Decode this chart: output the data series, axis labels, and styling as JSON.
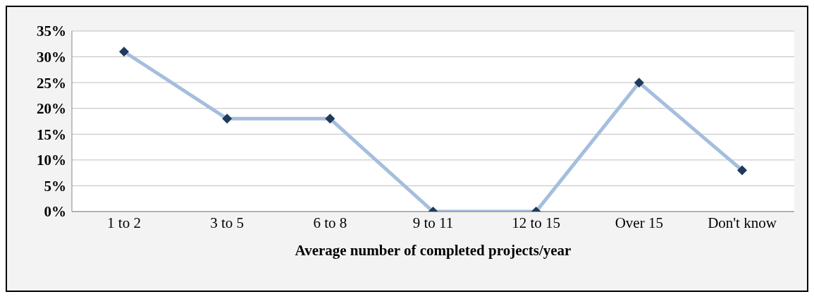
{
  "chart_data": {
    "type": "line",
    "xlabel": "Average number of completed projects/year",
    "categories": [
      "1 to 2",
      "3 to 5",
      "6 to 8",
      "9 to 11",
      "12 to 15",
      "Over 15",
      "Don't know"
    ],
    "series": [
      {
        "color": "#a5bedd",
        "colors": [
          "#1f3a5a",
          "#1f3a5a",
          "#1f3a5a",
          "#1f3a5a",
          "#1f3a5a",
          "#1f3a5a",
          "#1f3a5a"
        ],
        "values": [
          31,
          18,
          18,
          0,
          0,
          25,
          8
        ]
      }
    ],
    "ylim": [
      0,
      35
    ],
    "yticks": [
      {
        "value": 0,
        "label": "0%"
      },
      {
        "value": 5,
        "label": "5%"
      },
      {
        "value": 10,
        "label": "10%"
      },
      {
        "value": 15,
        "label": "15%"
      },
      {
        "value": 20,
        "label": "20%"
      },
      {
        "value": 25,
        "label": "25%"
      },
      {
        "value": 30,
        "label": "30%"
      },
      {
        "value": 35,
        "label": "35%"
      }
    ],
    "grid": "y",
    "marker": "diamond",
    "line_style": "solid"
  }
}
